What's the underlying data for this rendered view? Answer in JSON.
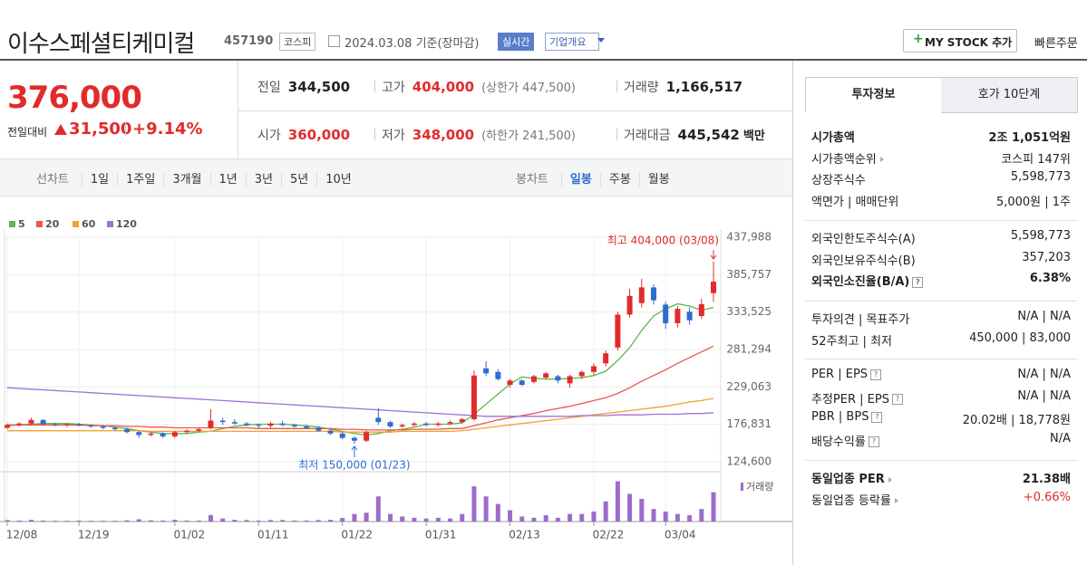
{
  "header": {
    "title": "이수스페셜티케미컬",
    "code": "457190",
    "market": "코스피",
    "date": "2024.03.08 기준(장마감)",
    "realtime": "실시간",
    "company": "기업개요",
    "mystock": "MY STOCK 추가",
    "quick_order": "빠른주문"
  },
  "price": {
    "current": "376,000",
    "change_label": "전일대비",
    "change": "31,500",
    "change_pct": "+9.14%",
    "color": "#e12b2b"
  },
  "summary": {
    "rows": [
      [
        {
          "label": "전일",
          "value": "344,500"
        },
        {
          "label": "고가",
          "value": "404,000",
          "note": "(상한가 447,500)",
          "color": "#e12b2b"
        },
        {
          "label": "거래량",
          "value": "1,166,517"
        }
      ],
      [
        {
          "label": "시가",
          "value": "360,000",
          "color": "#e12b2b"
        },
        {
          "label": "저가",
          "value": "348,000",
          "note": "(하한가 241,500)",
          "color": "#e12b2b"
        },
        {
          "label": "거래대금",
          "value": "445,542",
          "unit": "백만"
        }
      ]
    ]
  },
  "chart_tabs": {
    "line_label": "선차트",
    "line": [
      "1일",
      "1주일",
      "3개월",
      "1년",
      "3년",
      "5년",
      "10년"
    ],
    "candle_label": "봉차트",
    "candle": [
      "일봉",
      "주봉",
      "월봉"
    ],
    "selected_candle": 0
  },
  "chart_data": {
    "type": "candlestick",
    "categories": [
      "12/08",
      null,
      null,
      null,
      null,
      null,
      "12/19",
      null,
      null,
      null,
      null,
      null,
      null,
      null,
      "01/02",
      null,
      null,
      null,
      null,
      null,
      null,
      "01/11",
      null,
      null,
      null,
      null,
      null,
      null,
      "01/22",
      null,
      null,
      null,
      null,
      null,
      null,
      "01/31",
      null,
      null,
      null,
      null,
      null,
      null,
      "02/13",
      null,
      null,
      null,
      null,
      null,
      null,
      "02/22",
      null,
      null,
      null,
      null,
      null,
      "03/04",
      null,
      null,
      null,
      null
    ],
    "open": [
      172000,
      176000,
      178000,
      183000,
      177000,
      176000,
      177000,
      175000,
      174000,
      172000,
      170000,
      166000,
      162000,
      164000,
      160000,
      166000,
      168000,
      172000,
      182000,
      180000,
      178000,
      176000,
      175000,
      178000,
      176000,
      174000,
      172000,
      168000,
      164000,
      158000,
      154000,
      186000,
      180000,
      174000,
      176000,
      178000,
      176000,
      178000,
      180000,
      184000,
      255000,
      250000,
      232000,
      238000,
      236000,
      242000,
      244000,
      234000,
      244000,
      250000,
      262000,
      284000,
      330000,
      346000,
      368000,
      344000,
      318000,
      334000,
      328000,
      360000
    ],
    "high": [
      178000,
      180000,
      186000,
      184000,
      179000,
      178000,
      179000,
      177000,
      176000,
      174000,
      172000,
      168000,
      166000,
      166000,
      168000,
      170000,
      172000,
      198000,
      186000,
      184000,
      180000,
      178000,
      180000,
      182000,
      178000,
      176000,
      174000,
      170000,
      166000,
      160000,
      168000,
      200000,
      182000,
      178000,
      180000,
      180000,
      180000,
      182000,
      186000,
      252000,
      265000,
      254000,
      240000,
      240000,
      246000,
      250000,
      246000,
      246000,
      252000,
      262000,
      280000,
      334000,
      366000,
      380000,
      372000,
      348000,
      342000,
      340000,
      352000,
      404000
    ],
    "low": [
      170000,
      174000,
      176000,
      176000,
      174000,
      173000,
      174000,
      172000,
      170000,
      168000,
      164000,
      158000,
      160000,
      158000,
      158000,
      164000,
      166000,
      170000,
      176000,
      176000,
      174000,
      172000,
      172000,
      174000,
      172000,
      170000,
      166000,
      162000,
      156000,
      150000,
      152000,
      176000,
      172000,
      172000,
      174000,
      174000,
      174000,
      176000,
      178000,
      182000,
      244000,
      238000,
      228000,
      230000,
      234000,
      240000,
      234000,
      228000,
      240000,
      246000,
      258000,
      280000,
      326000,
      340000,
      344000,
      310000,
      312000,
      316000,
      324000,
      348000
    ],
    "close": [
      176000,
      178000,
      183000,
      177000,
      176000,
      177000,
      175000,
      174000,
      172000,
      170000,
      166000,
      162000,
      164000,
      160000,
      166000,
      168000,
      170000,
      182000,
      180000,
      178000,
      176000,
      175000,
      178000,
      176000,
      174000,
      172000,
      168000,
      164000,
      158000,
      154000,
      166000,
      180000,
      174000,
      176000,
      178000,
      176000,
      178000,
      180000,
      184000,
      245000,
      248000,
      240000,
      238000,
      232000,
      244000,
      248000,
      238000,
      244000,
      250000,
      258000,
      276000,
      330000,
      356000,
      368000,
      350000,
      318000,
      338000,
      322000,
      344500,
      376000
    ],
    "up_color": "#e12b2b",
    "down_color": "#2e6cd1",
    "ylim": [
      124600,
      437988
    ],
    "yticks": [
      {
        "value": 124600,
        "label": "124,600"
      },
      {
        "value": 176831,
        "label": "176,831"
      },
      {
        "value": 229063,
        "label": "229,063"
      },
      {
        "value": 281294,
        "label": "281,294"
      },
      {
        "value": 333525,
        "label": "333,525"
      },
      {
        "value": 385757,
        "label": "385,757"
      },
      {
        "value": 437988,
        "label": "437,988"
      }
    ],
    "grid": true,
    "series": [
      {
        "name": "5",
        "color": "#5cb84c",
        "values": [
          175000,
          176000,
          177000,
          178000,
          178000,
          178000,
          177000,
          176000,
          175000,
          173000,
          171000,
          168000,
          166000,
          164000,
          164000,
          164000,
          166000,
          167000,
          171000,
          174000,
          176000,
          177000,
          177000,
          177000,
          176000,
          175000,
          173000,
          170000,
          167000,
          164000,
          162000,
          164000,
          168000,
          170000,
          173000,
          177000,
          177000,
          177000,
          179000,
          191000,
          205000,
          219000,
          233000,
          243000,
          241000,
          240000,
          240000,
          241000,
          242000,
          245000,
          251000,
          266000,
          284000,
          308000,
          328000,
          338000,
          345000,
          342000,
          336000,
          340000
        ]
      },
      {
        "name": "20",
        "color": "#ef5350",
        "values": [
          176000,
          176000,
          176000,
          176000,
          176000,
          176000,
          176000,
          175000,
          175000,
          175000,
          174000,
          174000,
          173000,
          173000,
          172000,
          172000,
          172000,
          172000,
          172000,
          172000,
          172000,
          171000,
          171000,
          171000,
          171000,
          171000,
          171000,
          171000,
          170000,
          170000,
          169000,
          169000,
          169000,
          169000,
          170000,
          170000,
          170000,
          171000,
          171000,
          175000,
          179000,
          183000,
          186000,
          189000,
          192000,
          196000,
          199000,
          202000,
          206000,
          210000,
          214000,
          220000,
          228000,
          237000,
          245000,
          253000,
          262000,
          270000,
          278000,
          286000
        ]
      },
      {
        "name": "60",
        "color": "#f5a030",
        "values": [
          168000,
          168000,
          168000,
          168000,
          168000,
          168000,
          168000,
          168000,
          168000,
          168000,
          168000,
          168000,
          167000,
          167000,
          167000,
          167000,
          167000,
          167000,
          167000,
          167000,
          167000,
          167000,
          167000,
          167000,
          167000,
          167000,
          167000,
          167000,
          166000,
          166000,
          166000,
          166000,
          166000,
          167000,
          167000,
          167000,
          167000,
          167000,
          168000,
          170000,
          172000,
          174000,
          176000,
          178000,
          180000,
          182000,
          184000,
          186000,
          188000,
          190000,
          192000,
          194000,
          196000,
          198000,
          200000,
          202000,
          205000,
          208000,
          210000,
          213000
        ]
      },
      {
        "name": "120",
        "color": "#a070d8",
        "values": [
          228000,
          227000,
          226000,
          225000,
          224000,
          223000,
          222000,
          221000,
          220000,
          219000,
          218000,
          217000,
          216000,
          215000,
          214000,
          213000,
          212000,
          211000,
          210000,
          209000,
          208000,
          207000,
          206000,
          205000,
          204000,
          203000,
          202000,
          201000,
          200000,
          199000,
          198000,
          197000,
          196000,
          195000,
          194000,
          193000,
          192000,
          191000,
          190000,
          189000,
          188000,
          188000,
          188000,
          188000,
          188000,
          188000,
          188000,
          188000,
          189000,
          189000,
          189000,
          190000,
          190000,
          190000,
          191000,
          191000,
          191000,
          192000,
          192000,
          193000
        ]
      }
    ],
    "volume": {
      "name": "거래량",
      "color": "#9c6ccb",
      "ylim": [
        0,
        1800000
      ],
      "values": [
        60000,
        40000,
        70000,
        40000,
        30000,
        30000,
        40000,
        30000,
        30000,
        30000,
        50000,
        90000,
        50000,
        40000,
        70000,
        40000,
        40000,
        260000,
        120000,
        70000,
        60000,
        40000,
        60000,
        60000,
        40000,
        40000,
        60000,
        70000,
        140000,
        300000,
        350000,
        1000000,
        300000,
        200000,
        150000,
        120000,
        150000,
        120000,
        300000,
        1400000,
        1000000,
        700000,
        450000,
        200000,
        150000,
        250000,
        150000,
        300000,
        300000,
        400000,
        800000,
        1600000,
        1100000,
        900000,
        500000,
        400000,
        300000,
        250000,
        500000,
        1166517
      ]
    },
    "annotations": [
      {
        "text": "최고 404,000 (03/08)",
        "color": "#e12b2b"
      },
      {
        "text": "최저 150,000 (01/23)",
        "color": "#2e6cd1"
      }
    ]
  },
  "side_panel": {
    "tabs": [
      "투자정보",
      "호가 10단계"
    ],
    "sections": [
      [
        {
          "label": "시가총액",
          "value": "2조 1,051억원",
          "bold": true
        },
        {
          "label": "시가총액순위",
          "value": "코스피 147위",
          "link": true
        },
        {
          "label": "상장주식수",
          "value": "5,598,773"
        },
        {
          "label": "액면가 | 매매단위",
          "value": "5,000원 | 1주"
        }
      ],
      [
        {
          "label": "외국인한도주식수(A)",
          "value": "5,598,773"
        },
        {
          "label": "외국인보유주식수(B)",
          "value": "357,203"
        },
        {
          "label": "외국인소진율(B/A)",
          "value": "6.38%",
          "bold": true,
          "help": true
        }
      ],
      [
        {
          "label": "투자의견 | 목표주가",
          "value": "N/A | N/A"
        },
        {
          "label": "52주최고 | 최저",
          "value": "450,000 | 83,000"
        }
      ],
      [
        {
          "label": "PER | EPS",
          "value": "N/A | N/A",
          "help": true
        },
        {
          "label": "추정PER | EPS",
          "value": "N/A | N/A",
          "help": true
        },
        {
          "label": "PBR | BPS",
          "value": "20.02배 | 18,778원",
          "help": true
        },
        {
          "label": "배당수익률",
          "value": "N/A",
          "help": true
        }
      ],
      [
        {
          "label": "동일업종 PER",
          "value": "21.38배",
          "bold": true,
          "link": true
        },
        {
          "label": "동일업종 등락률",
          "value": "+0.66%",
          "link": true,
          "color": "#e12b2b"
        }
      ]
    ]
  }
}
